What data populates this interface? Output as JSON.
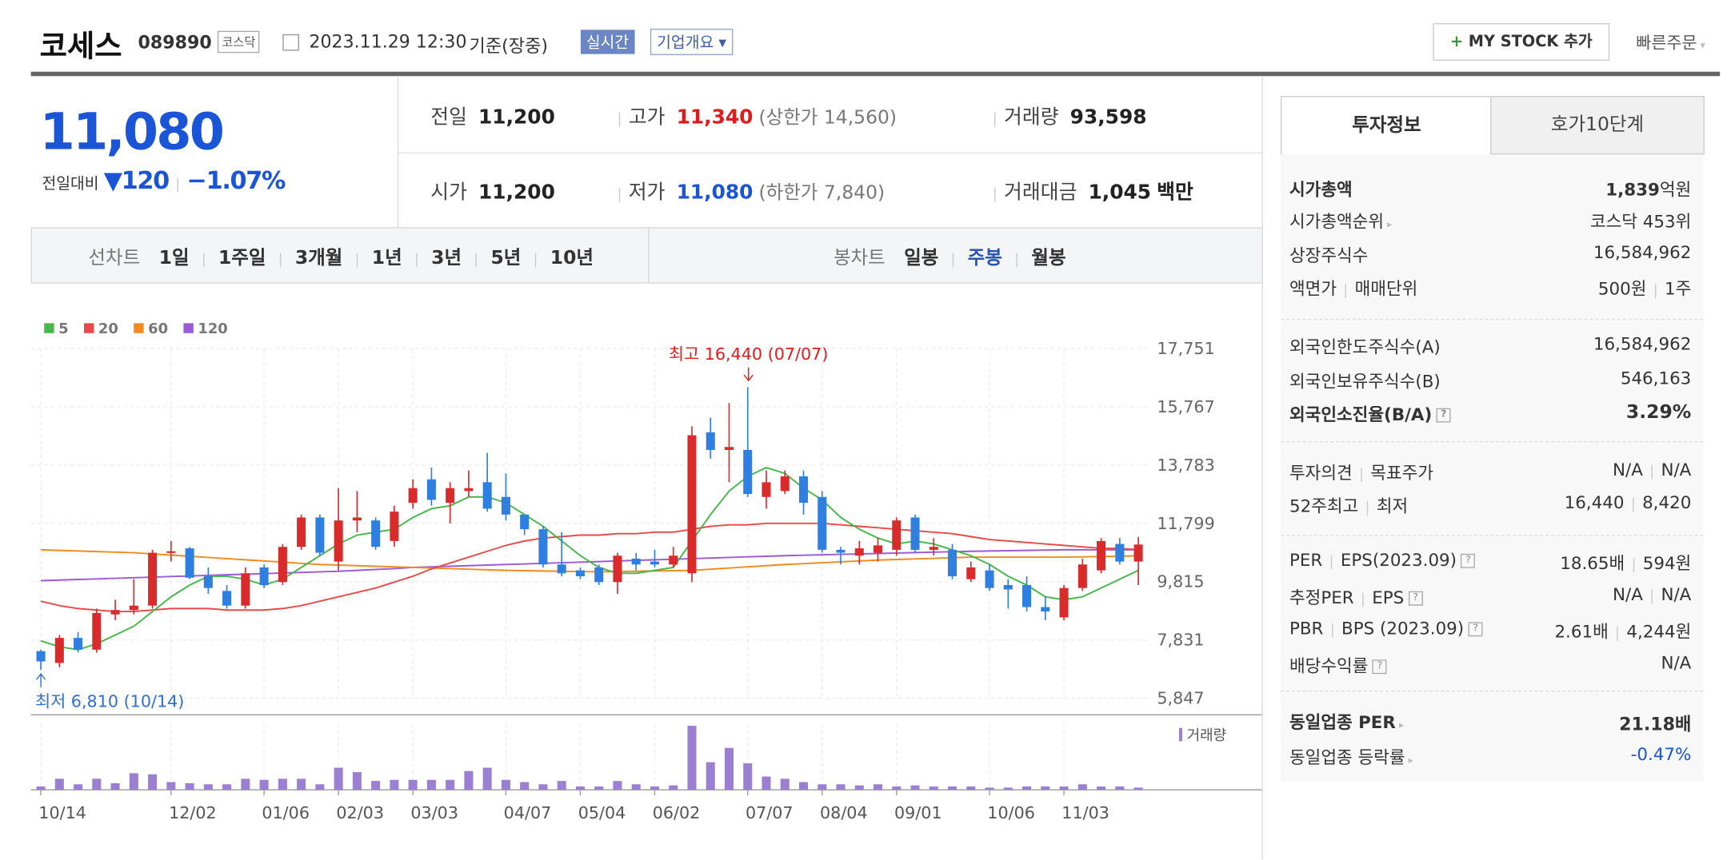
{
  "header": {
    "name": "코세스",
    "code": "089890",
    "market": "코스닥",
    "datetime": "2023.11.29 12:30",
    "basis": "기준(장중)",
    "realtime": "실시간",
    "overview": "기업개요",
    "mystock": "MY STOCK 추가",
    "quick_order": "빠른주문"
  },
  "price": {
    "current": "11,080",
    "change_label": "전일대비",
    "change": "120",
    "change_pct": "−1.07%"
  },
  "stats": {
    "prev_close": {
      "label": "전일",
      "value": "11,200"
    },
    "high": {
      "label": "고가",
      "value": "11,340",
      "sub": "(상한가 14,560)"
    },
    "volume": {
      "label": "거래량",
      "value": "93,598"
    },
    "open": {
      "label": "시가",
      "value": "11,200"
    },
    "low": {
      "label": "저가",
      "value": "11,080",
      "sub": "(하한가 7,840)"
    },
    "amount": {
      "label": "거래대금",
      "value": "1,045",
      "unit": "백만"
    }
  },
  "tabs": {
    "line_chart": {
      "label": "선차트",
      "options": [
        "1일",
        "1주일",
        "3개월",
        "1년",
        "3년",
        "5년",
        "10년"
      ]
    },
    "candle_chart": {
      "label": "봉차트",
      "options": [
        "일봉",
        "주봉",
        "월봉"
      ]
    }
  },
  "chart_data": {
    "type": "candlestick",
    "categories": [
      "10/14",
      null,
      null,
      null,
      null,
      null,
      null,
      "12/02",
      null,
      null,
      null,
      null,
      "01/06",
      null,
      null,
      null,
      "02/03",
      null,
      null,
      null,
      "03/03",
      null,
      null,
      null,
      null,
      "04/07",
      null,
      null,
      null,
      "05/04",
      null,
      null,
      null,
      "06/02",
      null,
      null,
      null,
      null,
      "07/07",
      null,
      null,
      null,
      "08/04",
      null,
      null,
      null,
      "09/01",
      null,
      null,
      null,
      null,
      "10/06",
      null,
      null,
      null,
      "11/03",
      null,
      null,
      null,
      null
    ],
    "open": [
      7450,
      7050,
      7900,
      7500,
      8700,
      8850,
      9000,
      10800,
      10950,
      10000,
      9500,
      9000,
      10300,
      9800,
      11000,
      12000,
      10500,
      11900,
      11900,
      11200,
      12500,
      13300,
      12500,
      12900,
      13200,
      12700,
      12100,
      11600,
      10400,
      10200,
      10300,
      9800,
      10600,
      10500,
      10400,
      10100,
      14900,
      14300,
      14300,
      12700,
      12900,
      13400,
      12700,
      10900,
      10700,
      10800,
      10900,
      12000,
      10900,
      10900,
      9900,
      10200,
      9700,
      9700,
      8950,
      8600,
      9600,
      10200,
      11100,
      10500
    ],
    "high": [
      7500,
      8000,
      8100,
      8900,
      9200,
      9900,
      10900,
      11200,
      11000,
      10300,
      9700,
      10300,
      10400,
      11100,
      12100,
      12100,
      13000,
      12900,
      12000,
      12400,
      13300,
      13700,
      13200,
      13600,
      14200,
      13500,
      12100,
      11700,
      11500,
      10300,
      10400,
      10800,
      10800,
      10900,
      11000,
      15100,
      15400,
      15900,
      16440,
      13600,
      13600,
      13600,
      12900,
      11000,
      11200,
      11300,
      12000,
      12100,
      11300,
      11100,
      10500,
      10400,
      9900,
      10000,
      9300,
      9700,
      10600,
      11300,
      11300,
      11340
    ],
    "low": [
      6810,
      6900,
      7400,
      7400,
      8500,
      8700,
      8900,
      10500,
      9900,
      9400,
      8900,
      8900,
      9600,
      9700,
      10900,
      10700,
      10200,
      11500,
      10900,
      11000,
      12300,
      12400,
      11800,
      12700,
      12200,
      11900,
      11400,
      10300,
      10000,
      9900,
      9700,
      9400,
      10200,
      10300,
      10300,
      9800,
      14000,
      13200,
      12700,
      12300,
      12800,
      12100,
      10800,
      10400,
      10400,
      10500,
      10700,
      10800,
      10700,
      9900,
      9800,
      9500,
      8900,
      8800,
      8500,
      8500,
      9500,
      10100,
      10400,
      9700
    ],
    "close": [
      7100,
      7900,
      7500,
      8750,
      8850,
      9000,
      10800,
      10850,
      9950,
      9600,
      9000,
      10100,
      9700,
      11000,
      12000,
      10800,
      11900,
      12000,
      11000,
      12200,
      13000,
      12600,
      13000,
      13000,
      12300,
      12100,
      11600,
      10400,
      10100,
      10000,
      9800,
      10700,
      10400,
      10400,
      10700,
      14800,
      14300,
      14400,
      12800,
      13200,
      13400,
      12500,
      10900,
      10800,
      10950,
      11050,
      11900,
      10900,
      11000,
      10000,
      10300,
      9600,
      9550,
      8950,
      8800,
      9600,
      10400,
      11200,
      10500,
      11080
    ],
    "up_color": "#d92b2b",
    "down_color": "#2f7fe0",
    "series": [
      {
        "name": "5",
        "color": "#47b64b",
        "values": [
          7800,
          7600,
          7500,
          7700,
          8000,
          8300,
          8800,
          9300,
          9700,
          10000,
          10000,
          9900,
          9700,
          9900,
          10300,
          10700,
          11100,
          11400,
          11500,
          11600,
          12000,
          12300,
          12400,
          12700,
          12700,
          12500,
          12100,
          11700,
          11200,
          10700,
          10300,
          10100,
          10100,
          10200,
          10300,
          11200,
          12100,
          12900,
          13400,
          13700,
          13500,
          13000,
          12600,
          12000,
          11600,
          11300,
          11100,
          11200,
          11100,
          10900,
          10700,
          10400,
          10000,
          9700,
          9300,
          9200,
          9300,
          9600,
          9900,
          10200
        ]
      },
      {
        "name": "20",
        "color": "#e84a4a",
        "values": [
          9150,
          9000,
          8900,
          8850,
          8800,
          8800,
          8850,
          8900,
          8900,
          8900,
          8850,
          8850,
          8850,
          8900,
          9000,
          9150,
          9300,
          9450,
          9600,
          9800,
          10000,
          10250,
          10450,
          10650,
          10850,
          11050,
          11200,
          11300,
          11350,
          11400,
          11400,
          11450,
          11450,
          11500,
          11500,
          11600,
          11700,
          11750,
          11750,
          11800,
          11800,
          11800,
          11800,
          11750,
          11700,
          11650,
          11600,
          11550,
          11500,
          11450,
          11350,
          11250,
          11200,
          11150,
          11100,
          11050,
          11000,
          10950,
          10950,
          10900
        ]
      },
      {
        "name": "60",
        "color": "#f08c1e",
        "values": [
          10900,
          10880,
          10860,
          10840,
          10820,
          10800,
          10760,
          10720,
          10680,
          10640,
          10600,
          10560,
          10520,
          10480,
          10440,
          10400,
          10380,
          10360,
          10340,
          10320,
          10300,
          10280,
          10260,
          10240,
          10220,
          10200,
          10190,
          10180,
          10170,
          10160,
          10150,
          10160,
          10170,
          10180,
          10190,
          10200,
          10240,
          10280,
          10320,
          10360,
          10400,
          10430,
          10460,
          10490,
          10520,
          10550,
          10570,
          10590,
          10610,
          10630,
          10650,
          10650,
          10650,
          10650,
          10650,
          10650,
          10660,
          10670,
          10680,
          10700
        ]
      },
      {
        "name": "120",
        "color": "#9b5ad8",
        "values": [
          9850,
          9870,
          9890,
          9910,
          9930,
          9950,
          9970,
          9990,
          10010,
          10030,
          10050,
          10070,
          10090,
          10110,
          10130,
          10150,
          10170,
          10200,
          10230,
          10260,
          10300,
          10320,
          10340,
          10360,
          10380,
          10400,
          10420,
          10440,
          10460,
          10480,
          10500,
          10520,
          10540,
          10560,
          10580,
          10600,
          10620,
          10640,
          10660,
          10680,
          10700,
          10715,
          10730,
          10745,
          10760,
          10775,
          10790,
          10805,
          10820,
          10835,
          10850,
          10860,
          10870,
          10880,
          10890,
          10900,
          10900,
          10900,
          10900,
          10900
        ]
      }
    ],
    "ylim": [
      5847,
      17751
    ],
    "yticks": [
      {
        "value": 5847,
        "label": "5,847"
      },
      {
        "value": 7831,
        "label": "7,831"
      },
      {
        "value": 9815,
        "label": "9,815"
      },
      {
        "value": 11799,
        "label": "11,799"
      },
      {
        "value": 13783,
        "label": "13,783"
      },
      {
        "value": 15767,
        "label": "15,767"
      },
      {
        "value": 17751,
        "label": "17,751"
      }
    ],
    "grid": true,
    "max_annotation": "최고 16,440 (07/07)",
    "min_annotation": "최저 6,810 (10/14)",
    "volume_label": "거래량",
    "volume_color": "#9b7fd0",
    "volume_ylim": [
      0,
      3000000
    ],
    "volume": [
      150000,
      500000,
      250000,
      500000,
      300000,
      750000,
      700000,
      350000,
      300000,
      250000,
      250000,
      500000,
      450000,
      500000,
      500000,
      250000,
      1000000,
      800000,
      400000,
      450000,
      450000,
      450000,
      450000,
      850000,
      1000000,
      450000,
      350000,
      250000,
      400000,
      150000,
      150000,
      400000,
      250000,
      150000,
      200000,
      2900000,
      1250000,
      1900000,
      1200000,
      600000,
      500000,
      350000,
      250000,
      250000,
      200000,
      250000,
      150000,
      200000,
      150000,
      150000,
      150000,
      100000,
      100000,
      150000,
      150000,
      150000,
      250000,
      150000,
      150000,
      100000
    ]
  },
  "sidebar": {
    "tabs": [
      "투자정보",
      "호가10단계"
    ],
    "market_cap": {
      "label": "시가총액",
      "value": "1,839",
      "unit": "억원"
    },
    "cap_rank": {
      "label": "시가총액순위",
      "value": "코스닥 453위"
    },
    "listed_shares": {
      "label": "상장주식수",
      "value": "16,584,962"
    },
    "par": {
      "label": [
        "액면가",
        "매매단위"
      ],
      "value": [
        "500원",
        "1주"
      ]
    },
    "foreign_limit": {
      "label": "외국인한도주식수(A)",
      "value": "16,584,962"
    },
    "foreign_hold": {
      "label": "외국인보유주식수(B)",
      "value": "546,163"
    },
    "foreign_ratio": {
      "label": "외국인소진율(B/A)",
      "value": "3.29%"
    },
    "opinion": {
      "label": [
        "투자의견",
        "목표주가"
      ],
      "value": [
        "N/A",
        "N/A"
      ]
    },
    "week52": {
      "label": [
        "52주최고",
        "최저"
      ],
      "value": [
        "16,440",
        "8,420"
      ]
    },
    "per": {
      "label": [
        "PER",
        "EPS(2023.09)"
      ],
      "value": [
        "18.65배",
        "594원"
      ]
    },
    "est_per": {
      "label": [
        "추정PER",
        "EPS"
      ],
      "value": [
        "N/A",
        "N/A"
      ]
    },
    "pbr": {
      "label": [
        "PBR",
        "BPS (2023.09)"
      ],
      "value": [
        "2.61배",
        "4,244원"
      ]
    },
    "dividend": {
      "label": "배당수익률",
      "value": "N/A"
    },
    "sector_per": {
      "label": "동일업종 PER",
      "value": "21.18배"
    },
    "sector_change": {
      "label": "동일업종 등락률",
      "value": "-0.47%"
    }
  }
}
